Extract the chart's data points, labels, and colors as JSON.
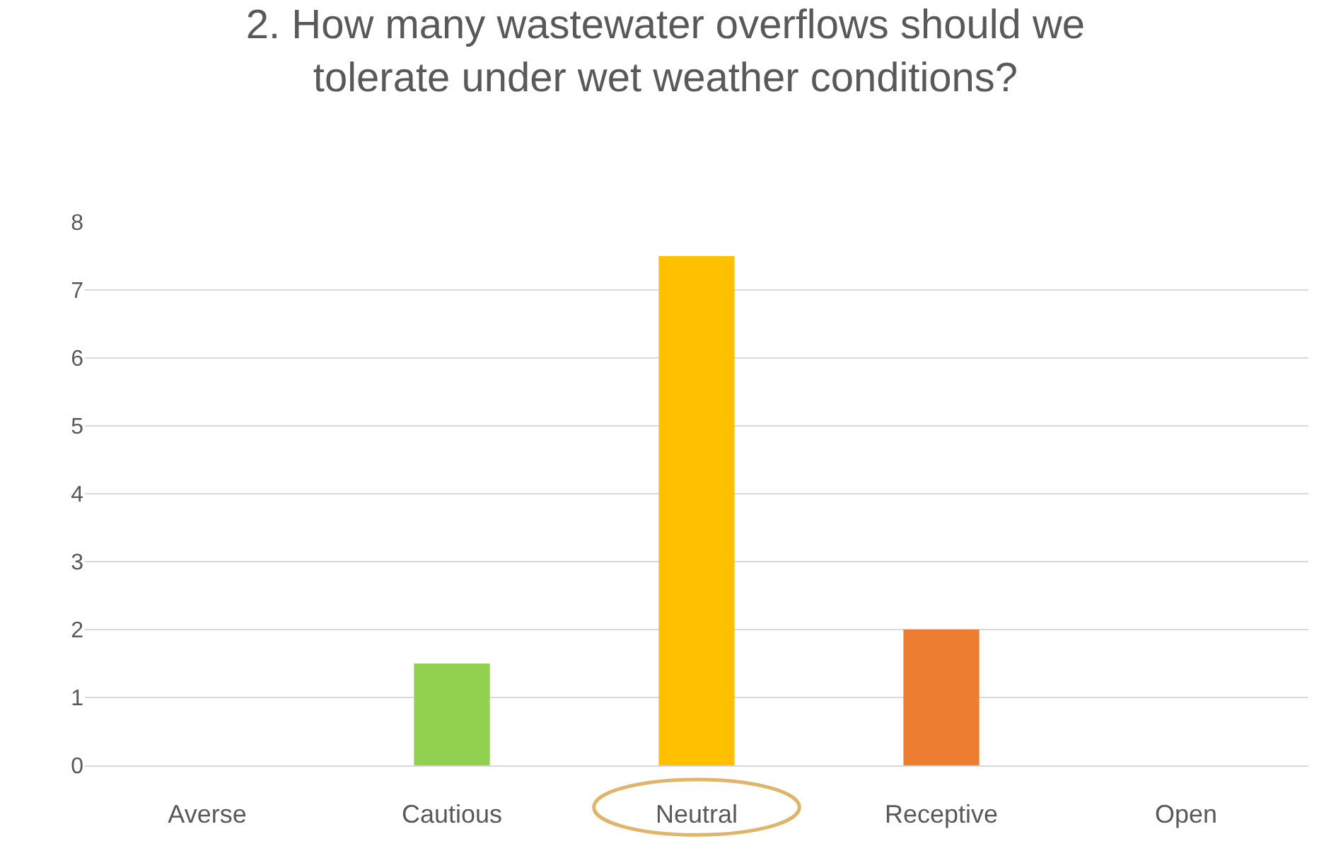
{
  "chart_data": {
    "type": "bar",
    "title": "2. How many wastewater overflows should we tolerate under wet weather conditions?",
    "categories": [
      "Averse",
      "Cautious",
      "Neutral",
      "Receptive",
      "Open"
    ],
    "values": [
      0,
      1.5,
      7.5,
      2,
      0
    ],
    "colors": [
      "#92d050",
      "#92d050",
      "#ffc000",
      "#ed7d31",
      "#5b9bd5"
    ],
    "ylim": [
      0,
      8
    ],
    "yticks": [
      0,
      1,
      2,
      3,
      4,
      5,
      6,
      7,
      8
    ],
    "grid": "y"
  }
}
